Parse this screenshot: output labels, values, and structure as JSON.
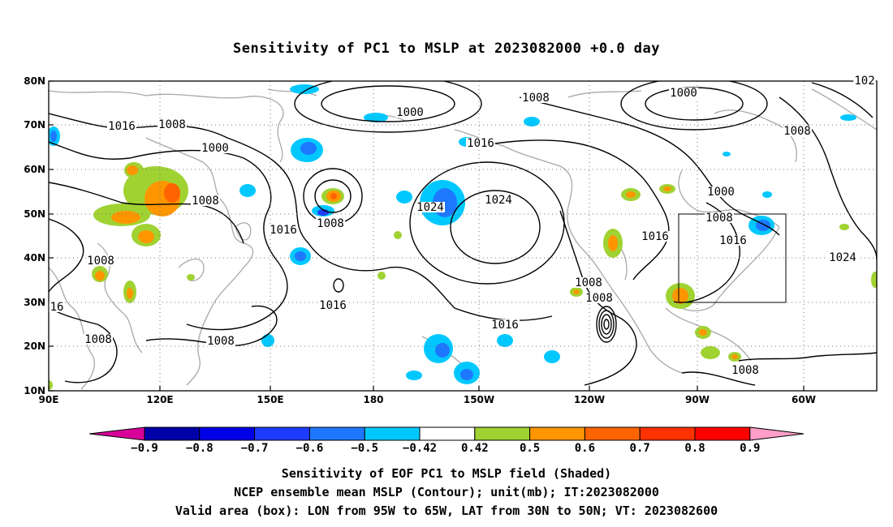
{
  "title": "Sensitivity of PC1 to MSLP at 2023082000 +0.0 day",
  "map": {
    "lon_range": [
      "90E",
      "30W"
    ],
    "lat_range": [
      "10N",
      "80N"
    ],
    "lat_ticks": [
      "80N",
      "70N",
      "60N",
      "50N",
      "40N",
      "30N",
      "20N",
      "10N"
    ],
    "lon_ticks": [
      "90E",
      "120E",
      "150E",
      "180",
      "150W",
      "120W",
      "90W",
      "60W"
    ],
    "grid": "dotted",
    "box": {
      "lon": [
        "95W",
        "65W"
      ],
      "lat": [
        "30N",
        "50N"
      ]
    }
  },
  "contour_labels": [
    "1000",
    "1000",
    "1000",
    "1000",
    "1008",
    "1008",
    "1008",
    "1008",
    "1008",
    "1008",
    "1008",
    "1008",
    "1008",
    "1008",
    "1008",
    "1008",
    "1016",
    "1016",
    "1016",
    "1016",
    "1016",
    "1016",
    "1016",
    "16",
    "1024",
    "1024",
    "1024",
    "102"
  ],
  "colorbar": {
    "labels": [
      "−0.9",
      "−0.8",
      "−0.7",
      "−0.6",
      "−0.5",
      "−0.42",
      "0.42",
      "0.5",
      "0.6",
      "0.7",
      "0.8",
      "0.9"
    ],
    "colors": [
      "#d60099",
      "#0000a8",
      "#0000e6",
      "#1e3cff",
      "#1e78ff",
      "#00c8ff",
      "#ffffff",
      "#a0d232",
      "#ff9600",
      "#ff6400",
      "#ff3200",
      "#ff0000",
      "#ff9ec8"
    ]
  },
  "shading_colors": {
    "blue_light": "#00c8ff",
    "blue_mid": "#1e78ff",
    "blue_dark": "#1e3cff",
    "green": "#a0d232",
    "orange": "#ff9600",
    "red_orange": "#ff6400"
  },
  "captions": [
    "Sensitivity of EOF PC1 to MSLP field (Shaded)",
    "NCEP ensemble mean MSLP (Contour); unit(mb); IT:2023082000",
    "Valid area (box): LON from 95W to 65W, LAT from 30N to 50N; VT: 2023082600"
  ]
}
